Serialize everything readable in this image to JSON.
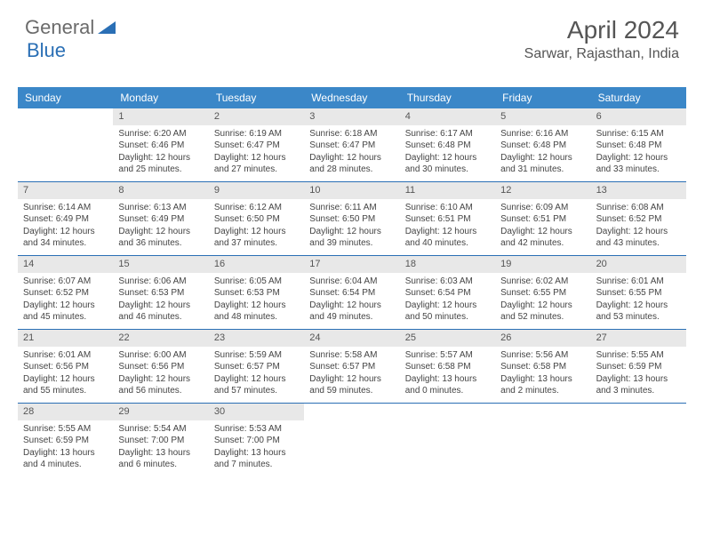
{
  "logo": {
    "text1": "General",
    "text2": "Blue"
  },
  "title": "April 2024",
  "location": "Sarwar, Rajasthan, India",
  "colors": {
    "header_bg": "#3b87c8",
    "border": "#2a6fb5",
    "daynum_bg": "#e8e8e8",
    "text": "#444444",
    "title": "#555555"
  },
  "day_names": [
    "Sunday",
    "Monday",
    "Tuesday",
    "Wednesday",
    "Thursday",
    "Friday",
    "Saturday"
  ],
  "weeks": [
    [
      {
        "n": "",
        "empty": true
      },
      {
        "n": "1",
        "sr": "6:20 AM",
        "ss": "6:46 PM",
        "dl": "12 hours and 25 minutes."
      },
      {
        "n": "2",
        "sr": "6:19 AM",
        "ss": "6:47 PM",
        "dl": "12 hours and 27 minutes."
      },
      {
        "n": "3",
        "sr": "6:18 AM",
        "ss": "6:47 PM",
        "dl": "12 hours and 28 minutes."
      },
      {
        "n": "4",
        "sr": "6:17 AM",
        "ss": "6:48 PM",
        "dl": "12 hours and 30 minutes."
      },
      {
        "n": "5",
        "sr": "6:16 AM",
        "ss": "6:48 PM",
        "dl": "12 hours and 31 minutes."
      },
      {
        "n": "6",
        "sr": "6:15 AM",
        "ss": "6:48 PM",
        "dl": "12 hours and 33 minutes."
      }
    ],
    [
      {
        "n": "7",
        "sr": "6:14 AM",
        "ss": "6:49 PM",
        "dl": "12 hours and 34 minutes."
      },
      {
        "n": "8",
        "sr": "6:13 AM",
        "ss": "6:49 PM",
        "dl": "12 hours and 36 minutes."
      },
      {
        "n": "9",
        "sr": "6:12 AM",
        "ss": "6:50 PM",
        "dl": "12 hours and 37 minutes."
      },
      {
        "n": "10",
        "sr": "6:11 AM",
        "ss": "6:50 PM",
        "dl": "12 hours and 39 minutes."
      },
      {
        "n": "11",
        "sr": "6:10 AM",
        "ss": "6:51 PM",
        "dl": "12 hours and 40 minutes."
      },
      {
        "n": "12",
        "sr": "6:09 AM",
        "ss": "6:51 PM",
        "dl": "12 hours and 42 minutes."
      },
      {
        "n": "13",
        "sr": "6:08 AM",
        "ss": "6:52 PM",
        "dl": "12 hours and 43 minutes."
      }
    ],
    [
      {
        "n": "14",
        "sr": "6:07 AM",
        "ss": "6:52 PM",
        "dl": "12 hours and 45 minutes."
      },
      {
        "n": "15",
        "sr": "6:06 AM",
        "ss": "6:53 PM",
        "dl": "12 hours and 46 minutes."
      },
      {
        "n": "16",
        "sr": "6:05 AM",
        "ss": "6:53 PM",
        "dl": "12 hours and 48 minutes."
      },
      {
        "n": "17",
        "sr": "6:04 AM",
        "ss": "6:54 PM",
        "dl": "12 hours and 49 minutes."
      },
      {
        "n": "18",
        "sr": "6:03 AM",
        "ss": "6:54 PM",
        "dl": "12 hours and 50 minutes."
      },
      {
        "n": "19",
        "sr": "6:02 AM",
        "ss": "6:55 PM",
        "dl": "12 hours and 52 minutes."
      },
      {
        "n": "20",
        "sr": "6:01 AM",
        "ss": "6:55 PM",
        "dl": "12 hours and 53 minutes."
      }
    ],
    [
      {
        "n": "21",
        "sr": "6:01 AM",
        "ss": "6:56 PM",
        "dl": "12 hours and 55 minutes."
      },
      {
        "n": "22",
        "sr": "6:00 AM",
        "ss": "6:56 PM",
        "dl": "12 hours and 56 minutes."
      },
      {
        "n": "23",
        "sr": "5:59 AM",
        "ss": "6:57 PM",
        "dl": "12 hours and 57 minutes."
      },
      {
        "n": "24",
        "sr": "5:58 AM",
        "ss": "6:57 PM",
        "dl": "12 hours and 59 minutes."
      },
      {
        "n": "25",
        "sr": "5:57 AM",
        "ss": "6:58 PM",
        "dl": "13 hours and 0 minutes."
      },
      {
        "n": "26",
        "sr": "5:56 AM",
        "ss": "6:58 PM",
        "dl": "13 hours and 2 minutes."
      },
      {
        "n": "27",
        "sr": "5:55 AM",
        "ss": "6:59 PM",
        "dl": "13 hours and 3 minutes."
      }
    ],
    [
      {
        "n": "28",
        "sr": "5:55 AM",
        "ss": "6:59 PM",
        "dl": "13 hours and 4 minutes."
      },
      {
        "n": "29",
        "sr": "5:54 AM",
        "ss": "7:00 PM",
        "dl": "13 hours and 6 minutes."
      },
      {
        "n": "30",
        "sr": "5:53 AM",
        "ss": "7:00 PM",
        "dl": "13 hours and 7 minutes."
      },
      {
        "n": "",
        "empty": true
      },
      {
        "n": "",
        "empty": true
      },
      {
        "n": "",
        "empty": true
      },
      {
        "n": "",
        "empty": true
      }
    ]
  ],
  "labels": {
    "sunrise": "Sunrise:",
    "sunset": "Sunset:",
    "daylight": "Daylight:"
  }
}
